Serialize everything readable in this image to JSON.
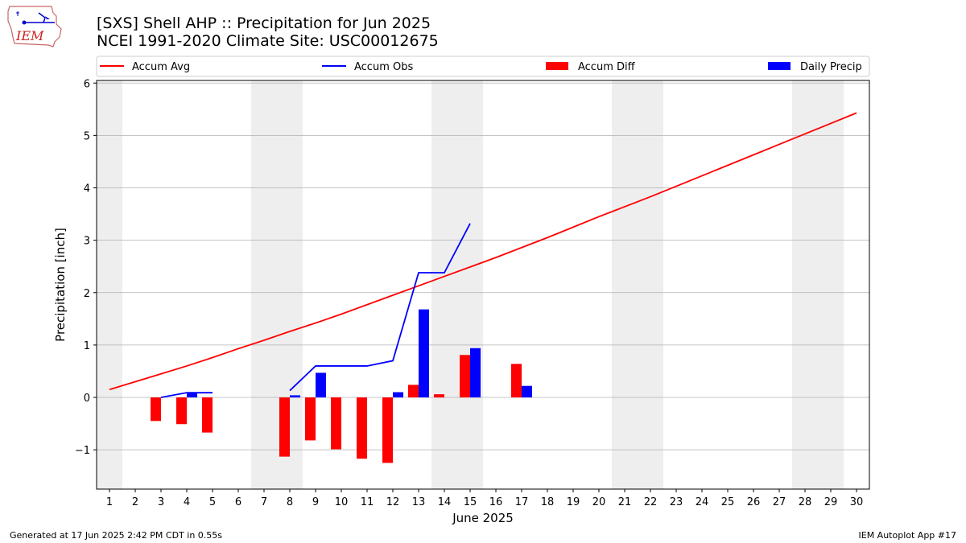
{
  "header": {
    "title_line1": "[SXS] Shell AHP :: Precipitation for Jun 2025",
    "title_line2": "NCEI 1991-2020 Climate Site: USC00012675",
    "logo_text": "IEM"
  },
  "footer": {
    "generated": "Generated at 17 Jun 2025 2:42 PM CDT in 0.55s",
    "app": "IEM Autoplot App #17"
  },
  "colors": {
    "accum_avg": "#ff0000",
    "accum_obs": "#0000ff",
    "accum_diff": "#ff0000",
    "daily_precip": "#0000ff",
    "weekend_band": "#eeeeee",
    "grid": "#b0b0b0"
  },
  "chart_data": {
    "type": "bar",
    "xlabel": "June 2025",
    "ylabel": "Precipitation [inch]",
    "xlim": [
      0.5,
      30.5
    ],
    "ylim": [
      -1.75,
      6.05
    ],
    "x_ticks": [
      1,
      2,
      3,
      4,
      5,
      6,
      7,
      8,
      9,
      10,
      11,
      12,
      13,
      14,
      15,
      16,
      17,
      18,
      19,
      20,
      21,
      22,
      23,
      24,
      25,
      26,
      27,
      28,
      29,
      30
    ],
    "y_ticks": [
      -1,
      0,
      1,
      2,
      3,
      4,
      5,
      6
    ],
    "y_tick_labels": [
      "−1",
      "0",
      "1",
      "2",
      "3",
      "4",
      "5",
      "6"
    ],
    "grid": "horizontal",
    "legend_placement": "top",
    "weekend_bands": [
      [
        0.5,
        1.5
      ],
      [
        6.5,
        8.5
      ],
      [
        13.5,
        15.5
      ],
      [
        20.5,
        22.5
      ],
      [
        27.5,
        29.5
      ]
    ],
    "legend": [
      {
        "label": "Accum Avg",
        "kind": "line",
        "color": "#ff0000"
      },
      {
        "label": "Accum Obs",
        "kind": "line",
        "color": "#0000ff"
      },
      {
        "label": "Accum Diff",
        "kind": "bar",
        "color": "#ff0000"
      },
      {
        "label": "Daily Precip",
        "kind": "bar",
        "color": "#0000ff"
      }
    ],
    "accum_avg": {
      "x": [
        1,
        2,
        3,
        4,
        5,
        6,
        7,
        8,
        9,
        10,
        11,
        12,
        13,
        14,
        15,
        16,
        17,
        18,
        19,
        20,
        21,
        22,
        23,
        24,
        25,
        26,
        27,
        28,
        29,
        30
      ],
      "y": [
        0.15,
        0.3,
        0.45,
        0.6,
        0.76,
        0.93,
        1.09,
        1.26,
        1.42,
        1.59,
        1.77,
        1.95,
        2.13,
        2.31,
        2.49,
        2.67,
        2.86,
        3.05,
        3.25,
        3.45,
        3.64,
        3.83,
        4.03,
        4.23,
        4.43,
        4.63,
        4.83,
        5.03,
        5.23,
        5.43
      ]
    },
    "accum_obs": {
      "segments": [
        {
          "x": [
            3,
            4,
            5
          ],
          "y": [
            0.0,
            0.09,
            0.09
          ]
        },
        {
          "x": [
            8,
            9,
            10,
            11,
            12,
            13,
            14,
            15
          ],
          "y": [
            0.13,
            0.6,
            0.6,
            0.6,
            0.7,
            2.38,
            2.38,
            3.32
          ]
        }
      ]
    },
    "accum_diff": {
      "x": [
        3,
        4,
        5,
        8,
        9,
        10,
        11,
        12,
        13,
        14,
        15,
        17
      ],
      "y": [
        -0.45,
        -0.51,
        -0.67,
        -1.13,
        -0.82,
        -0.99,
        -1.17,
        -1.25,
        0.24,
        0.06,
        0.81,
        0.64
      ]
    },
    "daily_precip": {
      "x": [
        4,
        8,
        9,
        12,
        13,
        15,
        17
      ],
      "y": [
        0.09,
        0.04,
        0.47,
        0.1,
        1.68,
        0.94,
        0.22
      ]
    }
  }
}
